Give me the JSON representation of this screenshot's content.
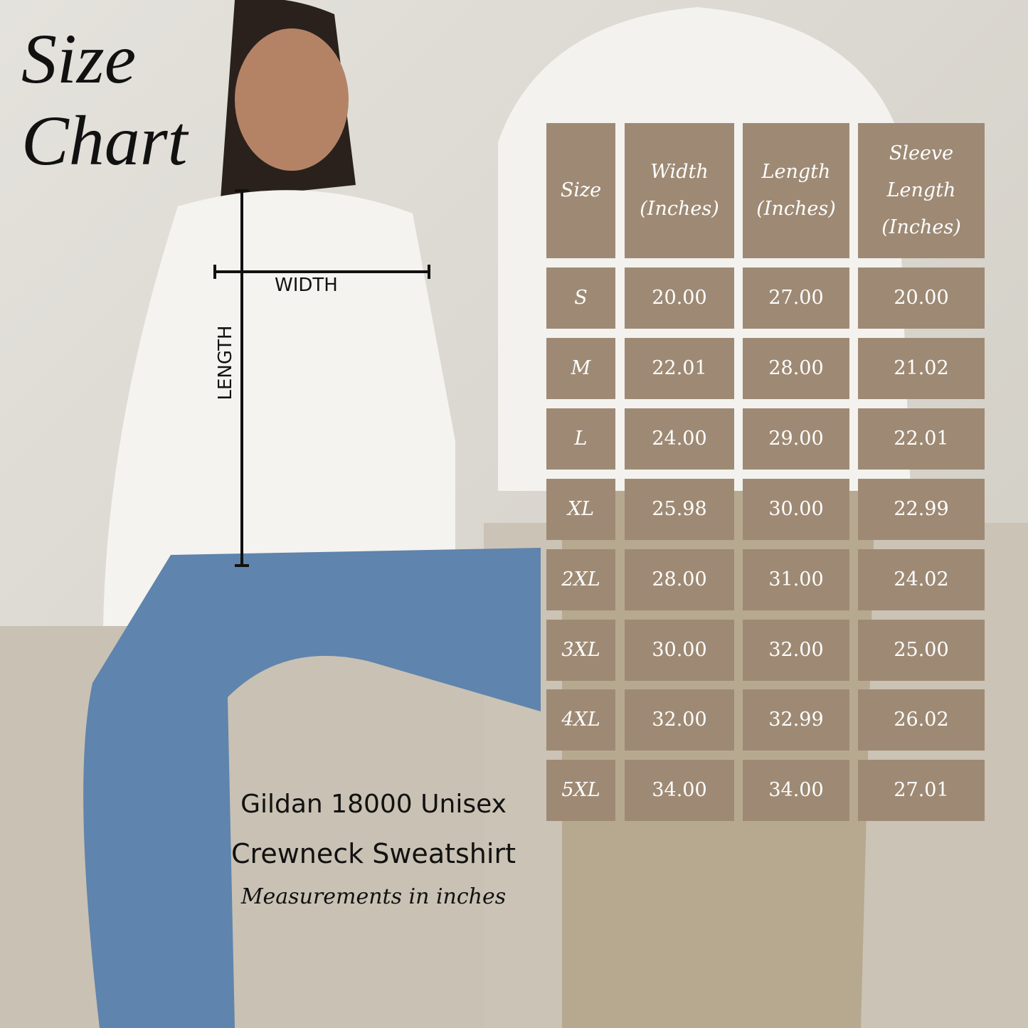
{
  "title": {
    "line1": "Size",
    "line2": "Chart"
  },
  "measure_labels": {
    "width": "WIDTH",
    "length": "LENGTH"
  },
  "table": {
    "header": [
      "Size",
      "Width (Inches)",
      "Length (Inches)",
      "Sleeve Length (Inches)"
    ],
    "rows": [
      [
        "S",
        "20.00",
        "27.00",
        "20.00"
      ],
      [
        "M",
        "22.01",
        "28.00",
        "21.02"
      ],
      [
        "L",
        "24.00",
        "29.00",
        "22.01"
      ],
      [
        "XL",
        "25.98",
        "30.00",
        "22.99"
      ],
      [
        "2XL",
        "28.00",
        "31.00",
        "24.02"
      ],
      [
        "3XL",
        "30.00",
        "32.00",
        "25.00"
      ],
      [
        "4XL",
        "32.00",
        "32.99",
        "26.02"
      ],
      [
        "5XL",
        "34.00",
        "34.00",
        "27.01"
      ]
    ]
  },
  "caption": {
    "line1": "Gildan 18000 Unisex",
    "line2": "Crewneck Sweatshirt",
    "note": "Measurements in inches"
  }
}
